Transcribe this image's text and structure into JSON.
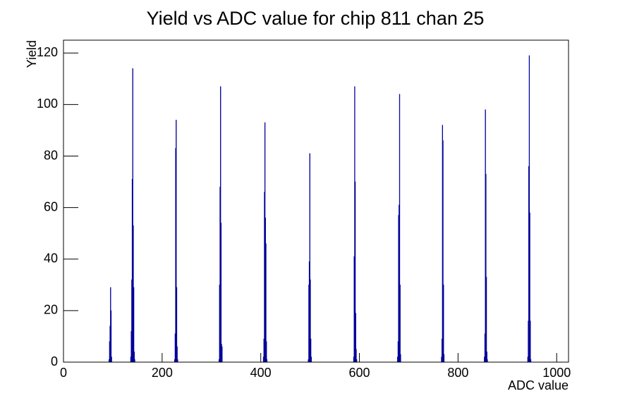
{
  "chart_data": {
    "type": "histogram",
    "title": "Yield vs ADC value for chip 811 chan 25",
    "x_label": "ADC value",
    "y_label": "Yield",
    "bins": [
      0,
      92,
      93,
      94,
      95,
      96,
      97,
      98,
      136,
      137,
      138,
      139,
      140,
      141,
      142,
      143,
      144,
      145,
      225,
      226,
      227,
      228,
      229,
      230,
      231,
      232,
      315,
      316,
      317,
      318,
      319,
      320,
      321,
      322,
      405,
      406,
      407,
      408,
      409,
      410,
      411,
      412,
      413,
      496,
      497,
      498,
      499,
      500,
      501,
      502,
      503,
      588,
      589,
      590,
      591,
      592,
      593,
      594,
      595,
      677,
      678,
      679,
      680,
      681,
      682,
      683,
      684,
      766,
      767,
      768,
      769,
      770,
      771,
      772,
      853,
      854,
      855,
      856,
      857,
      858,
      859,
      860,
      941,
      942,
      943,
      944,
      945,
      946,
      947,
      948,
      1024
    ],
    "values": [
      0,
      1,
      8,
      14,
      29,
      20,
      2,
      0,
      2,
      12,
      32,
      71,
      114,
      53,
      29,
      4,
      1,
      0,
      1,
      11,
      83,
      94,
      29,
      6,
      1,
      0,
      1,
      30,
      68,
      107,
      54,
      7,
      6,
      0,
      2,
      9,
      66,
      93,
      56,
      46,
      8,
      1,
      0,
      1,
      30,
      39,
      81,
      32,
      9,
      2,
      0,
      2,
      41,
      107,
      70,
      19,
      5,
      1,
      0,
      2,
      8,
      57,
      61,
      104,
      30,
      3,
      0,
      2,
      9,
      92,
      86,
      30,
      3,
      0,
      2,
      11,
      98,
      73,
      33,
      4,
      1,
      0,
      2,
      16,
      76,
      119,
      58,
      16,
      1,
      0
    ],
    "color": "#000099",
    "xlim": [
      0,
      1024
    ],
    "xticks": [
      0,
      200,
      400,
      600,
      800,
      1000
    ],
    "ylim": [
      0,
      125
    ],
    "yticks": [
      0,
      20,
      40,
      60,
      80,
      100,
      120
    ]
  }
}
